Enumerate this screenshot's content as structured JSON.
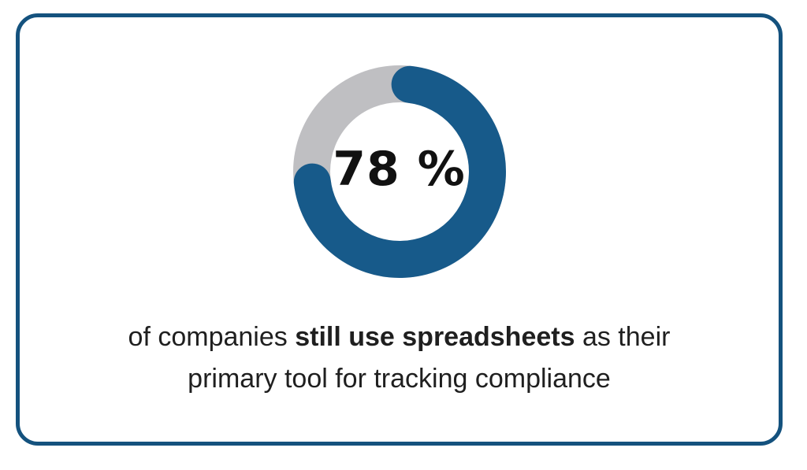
{
  "card": {
    "background": "#ffffff",
    "border_color": "#14527E"
  },
  "chart_data": {
    "type": "pie",
    "subtype": "donut-progress",
    "percent": 78,
    "values": [
      78,
      22
    ],
    "labels": [
      "filled",
      "remainder"
    ],
    "center_label": "78 %",
    "filled_color": "#175A8A",
    "track_color": "#BFBFC2",
    "label_color": "#111111",
    "gap_center_deg": 135,
    "rounded_caps": true,
    "legend": "none",
    "title": ""
  },
  "caption": {
    "color": "#1F1F1F",
    "line1_segments": [
      {
        "text": "of companies ",
        "bold": false
      },
      {
        "text": "still use spreadsheets",
        "bold": true
      },
      {
        "text": " as their",
        "bold": false
      }
    ],
    "line2": "primary tool for tracking compliance",
    "full_text": "of companies still use spreadsheets as their primary tool for tracking compliance"
  }
}
